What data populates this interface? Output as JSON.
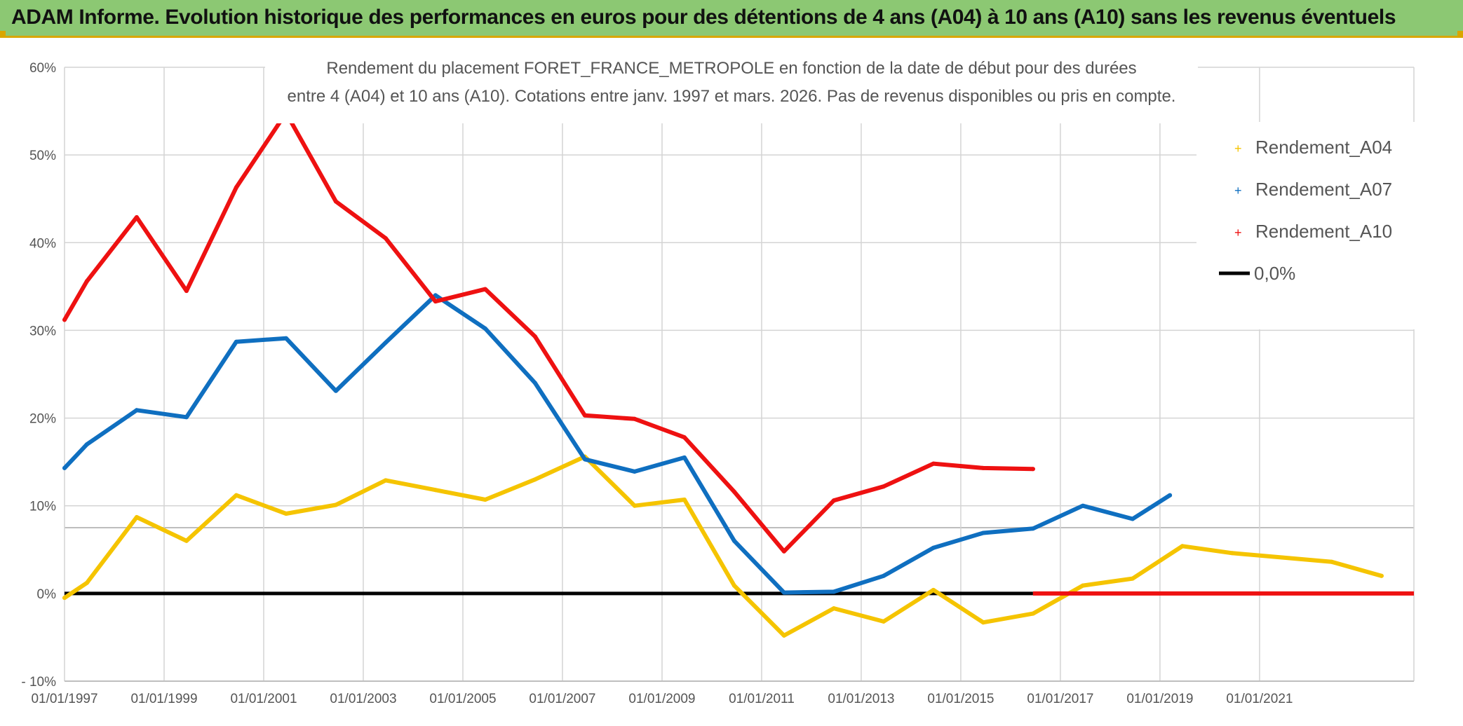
{
  "header": {
    "title": "ADAM Informe. Evolution historique des performances en euros pour des détentions de 4 ans (A04) à 10 ans (A10) sans les revenus éventuels"
  },
  "colors": {
    "banner": "#8cc873",
    "accent": "#d9a600",
    "a04": "#f5c400",
    "a07": "#0f6fc0",
    "a10": "#ee1111",
    "zero": "#000000"
  },
  "chart_data": {
    "type": "line",
    "title_line1": "Rendement du placement FORET_FRANCE_METROPOLE en fonction de la date de début pour des durées",
    "title_line2": "entre 4 (A04) et 10 ans (A10). Cotations entre janv. 1997 et mars. 2026. Pas de revenus disponibles ou pris en compte.",
    "xlabel": "",
    "ylabel": "",
    "xlim": [
      1997.0,
      2024.1
    ],
    "ylim": [
      -10,
      60
    ],
    "yticks": [
      {
        "v": -10,
        "label": "- 10%"
      },
      {
        "v": 0,
        "label": "0%"
      },
      {
        "v": 10,
        "label": "10%"
      },
      {
        "v": 20,
        "label": "20%"
      },
      {
        "v": 30,
        "label": "30%"
      },
      {
        "v": 40,
        "label": "40%"
      },
      {
        "v": 50,
        "label": "50%"
      },
      {
        "v": 60,
        "label": "60%"
      }
    ],
    "xticks": [
      {
        "v": 1997,
        "label": "01/01/1997"
      },
      {
        "v": 1999,
        "label": "01/01/1999"
      },
      {
        "v": 2001,
        "label": "01/01/2001"
      },
      {
        "v": 2003,
        "label": "01/01/2003"
      },
      {
        "v": 2005,
        "label": "01/01/2005"
      },
      {
        "v": 2007,
        "label": "01/01/2007"
      },
      {
        "v": 2009,
        "label": "01/01/2009"
      },
      {
        "v": 2011,
        "label": "01/01/2011"
      },
      {
        "v": 2013,
        "label": "01/01/2013"
      },
      {
        "v": 2015,
        "label": "01/01/2015"
      },
      {
        "v": 2017,
        "label": "01/01/2017"
      },
      {
        "v": 2019,
        "label": "01/01/2019"
      },
      {
        "v": 2021,
        "label": "01/01/2021"
      }
    ],
    "extra_gridlines": [
      7.5
    ],
    "legend_position": "top-right",
    "series": [
      {
        "name": "Rendement_A04",
        "key": "a04",
        "color": "#f5c400",
        "x": [
          1997.0,
          1997.45,
          1998.45,
          1999.45,
          2000.45,
          2001.45,
          2002.45,
          2003.45,
          2004.45,
          2005.45,
          2006.45,
          2007.45,
          2008.45,
          2009.45,
          2010.45,
          2011.45,
          2012.45,
          2013.45,
          2014.45,
          2015.45,
          2016.45,
          2017.45,
          2018.45,
          2019.45,
          2020.45,
          2021.45,
          2022.45,
          2023.45
        ],
        "y": [
          -0.5,
          1.2,
          8.7,
          6.0,
          11.2,
          9.1,
          10.1,
          12.9,
          11.8,
          10.7,
          13.0,
          15.6,
          10.0,
          10.7,
          0.9,
          -4.8,
          -1.7,
          -3.2,
          0.4,
          -3.3,
          -2.3,
          0.9,
          1.7,
          5.4,
          4.6,
          4.1,
          3.6,
          2.0
        ]
      },
      {
        "name": "Rendement_A07",
        "key": "a07",
        "color": "#0f6fc0",
        "x": [
          1997.0,
          1997.45,
          1998.45,
          1999.45,
          2000.45,
          2001.45,
          2002.45,
          2003.45,
          2004.45,
          2005.45,
          2006.45,
          2007.45,
          2008.45,
          2009.45,
          2010.45,
          2011.45,
          2012.45,
          2013.45,
          2014.45,
          2015.45,
          2016.45,
          2017.45,
          2018.45,
          2019.2
        ],
        "y": [
          14.3,
          17.0,
          20.9,
          20.1,
          28.7,
          29.1,
          23.1,
          28.6,
          34.0,
          30.2,
          24.0,
          15.3,
          13.9,
          15.5,
          6.0,
          0.1,
          0.2,
          2.0,
          5.2,
          6.9,
          7.4,
          10.0,
          8.5,
          11.2
        ]
      },
      {
        "name": "Rendement_A10",
        "key": "a10",
        "color": "#ee1111",
        "x": [
          1997.0,
          1997.45,
          1998.45,
          1999.45,
          2000.45,
          2001.45,
          2002.45,
          2003.45,
          2004.45,
          2005.45,
          2006.45,
          2007.45,
          2008.45,
          2009.45,
          2010.45,
          2011.45,
          2012.45,
          2013.45,
          2014.45,
          2015.45,
          2016.45
        ],
        "y": [
          31.2,
          35.6,
          42.9,
          34.5,
          46.3,
          54.8,
          44.7,
          40.5,
          33.3,
          34.7,
          29.3,
          20.3,
          19.9,
          17.8,
          11.6,
          4.8,
          10.6,
          12.2,
          14.8,
          14.3,
          14.2
        ],
        "tail_x": [
          2016.45,
          2024.1
        ],
        "tail_y": [
          0,
          0
        ]
      }
    ],
    "reference_line": {
      "name": "0,0%",
      "value": 0,
      "color": "#000000"
    }
  }
}
